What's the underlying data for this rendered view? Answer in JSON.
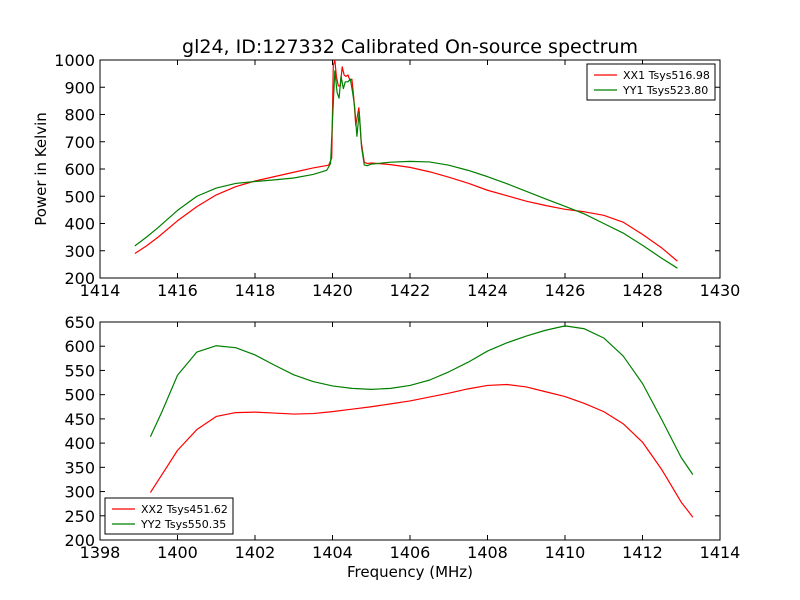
{
  "figure_title": "gl24, ID:127332 Calibrated On-source spectrum",
  "colors": {
    "red": "#ff0000",
    "green": "#007f00"
  },
  "chart_data": [
    {
      "type": "line",
      "title": "gl24, ID:127332 Calibrated On-source spectrum",
      "xlabel": "",
      "ylabel": "Power in Kelvin",
      "xlim": [
        1414,
        1430
      ],
      "ylim": [
        200,
        1000
      ],
      "xticks": [
        1414,
        1416,
        1418,
        1420,
        1422,
        1424,
        1426,
        1428,
        1430
      ],
      "yticks": [
        200,
        300,
        400,
        500,
        600,
        700,
        800,
        900,
        1000
      ],
      "legend_position": "top-right",
      "grid": false,
      "series": [
        {
          "name": "XX1 Tsys516.98",
          "color": "#ff0000",
          "points": [
            [
              1414.9,
              290
            ],
            [
              1415.2,
              318
            ],
            [
              1415.5,
              350
            ],
            [
              1416.0,
              410
            ],
            [
              1416.5,
              462
            ],
            [
              1417.0,
              505
            ],
            [
              1417.5,
              535
            ],
            [
              1418.0,
              556
            ],
            [
              1418.5,
              572
            ],
            [
              1419.0,
              588
            ],
            [
              1419.5,
              604
            ],
            [
              1419.9,
              614
            ],
            [
              1419.98,
              640
            ],
            [
              1420.02,
              980
            ],
            [
              1420.06,
              1000
            ],
            [
              1420.1,
              940
            ],
            [
              1420.15,
              905
            ],
            [
              1420.2,
              905
            ],
            [
              1420.25,
              975
            ],
            [
              1420.3,
              945
            ],
            [
              1420.35,
              940
            ],
            [
              1420.4,
              945
            ],
            [
              1420.45,
              925
            ],
            [
              1420.5,
              930
            ],
            [
              1420.55,
              860
            ],
            [
              1420.6,
              760
            ],
            [
              1420.68,
              825
            ],
            [
              1420.74,
              700
            ],
            [
              1420.82,
              625
            ],
            [
              1420.9,
              620
            ],
            [
              1421.0,
              622
            ],
            [
              1421.5,
              616
            ],
            [
              1422.0,
              606
            ],
            [
              1422.5,
              590
            ],
            [
              1423.0,
              570
            ],
            [
              1423.5,
              548
            ],
            [
              1424.0,
              522
            ],
            [
              1424.5,
              502
            ],
            [
              1425.0,
              482
            ],
            [
              1425.5,
              466
            ],
            [
              1426.0,
              452
            ],
            [
              1426.5,
              443
            ],
            [
              1427.0,
              430
            ],
            [
              1427.5,
              405
            ],
            [
              1428.0,
              360
            ],
            [
              1428.5,
              310
            ],
            [
              1428.9,
              262
            ]
          ]
        },
        {
          "name": "YY1 Tsys523.80",
          "color": "#007f00",
          "points": [
            [
              1414.9,
              318
            ],
            [
              1415.2,
              350
            ],
            [
              1415.5,
              385
            ],
            [
              1416.0,
              448
            ],
            [
              1416.5,
              500
            ],
            [
              1417.0,
              530
            ],
            [
              1417.5,
              547
            ],
            [
              1418.0,
              554
            ],
            [
              1418.5,
              560
            ],
            [
              1419.0,
              567
            ],
            [
              1419.5,
              580
            ],
            [
              1419.85,
              595
            ],
            [
              1419.95,
              620
            ],
            [
              1420.0,
              780
            ],
            [
              1420.06,
              960
            ],
            [
              1420.12,
              880
            ],
            [
              1420.17,
              860
            ],
            [
              1420.22,
              940
            ],
            [
              1420.28,
              895
            ],
            [
              1420.33,
              920
            ],
            [
              1420.4,
              920
            ],
            [
              1420.46,
              930
            ],
            [
              1420.52,
              880
            ],
            [
              1420.57,
              830
            ],
            [
              1420.63,
              720
            ],
            [
              1420.69,
              810
            ],
            [
              1420.75,
              680
            ],
            [
              1420.82,
              615
            ],
            [
              1420.9,
              612
            ],
            [
              1421.0,
              618
            ],
            [
              1421.5,
              625
            ],
            [
              1422.0,
              628
            ],
            [
              1422.5,
              626
            ],
            [
              1423.0,
              614
            ],
            [
              1423.5,
              595
            ],
            [
              1424.0,
              572
            ],
            [
              1424.5,
              546
            ],
            [
              1425.0,
              518
            ],
            [
              1425.5,
              490
            ],
            [
              1426.0,
              463
            ],
            [
              1426.5,
              435
            ],
            [
              1427.0,
              400
            ],
            [
              1427.5,
              365
            ],
            [
              1428.0,
              320
            ],
            [
              1428.5,
              272
            ],
            [
              1428.9,
              236
            ]
          ]
        }
      ]
    },
    {
      "type": "line",
      "title": "",
      "xlabel": "Frequency (MHz)",
      "ylabel": "",
      "xlim": [
        1398,
        1414
      ],
      "ylim": [
        200,
        650
      ],
      "xticks": [
        1398,
        1400,
        1402,
        1404,
        1406,
        1408,
        1410,
        1412,
        1414
      ],
      "yticks": [
        200,
        250,
        300,
        350,
        400,
        450,
        500,
        550,
        600,
        650
      ],
      "legend_position": "bottom-left",
      "grid": false,
      "series": [
        {
          "name": "XX2 Tsys451.62",
          "color": "#ff0000",
          "points": [
            [
              1399.3,
              298
            ],
            [
              1399.6,
              335
            ],
            [
              1400.0,
              385
            ],
            [
              1400.5,
              428
            ],
            [
              1401.0,
              455
            ],
            [
              1401.5,
              463
            ],
            [
              1402.0,
              464
            ],
            [
              1402.5,
              462
            ],
            [
              1403.0,
              460
            ],
            [
              1403.5,
              461
            ],
            [
              1404.0,
              465
            ],
            [
              1404.5,
              470
            ],
            [
              1405.0,
              475
            ],
            [
              1405.5,
              481
            ],
            [
              1406.0,
              487
            ],
            [
              1406.5,
              495
            ],
            [
              1407.0,
              503
            ],
            [
              1407.5,
              512
            ],
            [
              1408.0,
              519
            ],
            [
              1408.5,
              521
            ],
            [
              1409.0,
              516
            ],
            [
              1409.5,
              506
            ],
            [
              1410.0,
              496
            ],
            [
              1410.5,
              482
            ],
            [
              1411.0,
              465
            ],
            [
              1411.5,
              440
            ],
            [
              1412.0,
              402
            ],
            [
              1412.5,
              345
            ],
            [
              1413.0,
              278
            ],
            [
              1413.3,
              247
            ]
          ]
        },
        {
          "name": "YY2 Tsys550.35",
          "color": "#007f00",
          "points": [
            [
              1399.3,
              413
            ],
            [
              1399.6,
              465
            ],
            [
              1400.0,
              540
            ],
            [
              1400.5,
              588
            ],
            [
              1401.0,
              601
            ],
            [
              1401.5,
              597
            ],
            [
              1402.0,
              582
            ],
            [
              1402.5,
              561
            ],
            [
              1403.0,
              541
            ],
            [
              1403.5,
              527
            ],
            [
              1404.0,
              518
            ],
            [
              1404.5,
              513
            ],
            [
              1405.0,
              511
            ],
            [
              1405.5,
              513
            ],
            [
              1406.0,
              519
            ],
            [
              1406.5,
              530
            ],
            [
              1407.0,
              547
            ],
            [
              1407.5,
              567
            ],
            [
              1408.0,
              590
            ],
            [
              1408.5,
              607
            ],
            [
              1409.0,
              621
            ],
            [
              1409.5,
              633
            ],
            [
              1410.0,
              642
            ],
            [
              1410.5,
              636
            ],
            [
              1411.0,
              617
            ],
            [
              1411.5,
              580
            ],
            [
              1412.0,
              523
            ],
            [
              1412.5,
              448
            ],
            [
              1413.0,
              370
            ],
            [
              1413.3,
              335
            ]
          ]
        }
      ]
    }
  ]
}
